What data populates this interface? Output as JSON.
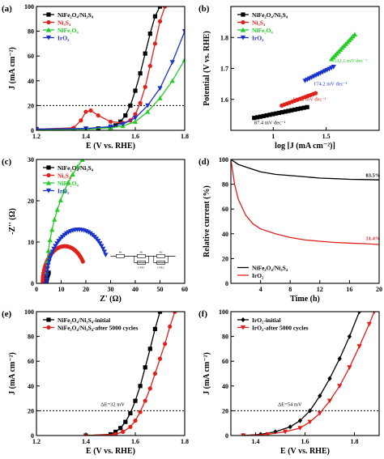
{
  "chart_data": [
    {
      "panel": "(a)",
      "type": "line",
      "xlabel": "E (V vs. RHE)",
      "ylabel": "J (mA cm⁻²)",
      "xlim": [
        1.2,
        1.8
      ],
      "ylim": [
        0,
        100
      ],
      "xticks": [
        1.2,
        1.4,
        1.6,
        1.8
      ],
      "yticks": [
        0,
        20,
        40,
        60,
        80,
        100
      ],
      "legend": "top-left",
      "reference_line": {
        "y": 20,
        "style": "dotted"
      },
      "series": [
        {
          "name": "NiFe₂O₄/Ni₃S₄",
          "color": "#000000",
          "marker": "square",
          "x": [
            1.2,
            1.35,
            1.45,
            1.5,
            1.52,
            1.54,
            1.56,
            1.58,
            1.6,
            1.62,
            1.64,
            1.66,
            1.68,
            1.7
          ],
          "y": [
            1,
            1,
            1.5,
            2.5,
            4,
            7,
            12,
            20,
            32,
            46,
            62,
            78,
            92,
            100
          ]
        },
        {
          "name": "Ni₃S₄",
          "color": "#e0201b",
          "marker": "circle",
          "x": [
            1.2,
            1.35,
            1.38,
            1.4,
            1.42,
            1.45,
            1.5,
            1.55,
            1.58,
            1.6,
            1.62,
            1.64,
            1.66,
            1.68,
            1.7,
            1.72
          ],
          "y": [
            1,
            2,
            8,
            15,
            16,
            12,
            7,
            6,
            8,
            13,
            22,
            35,
            52,
            70,
            88,
            100
          ]
        },
        {
          "name": "NiFe₂O₄",
          "color": "#22cc22",
          "marker": "triangle-up",
          "x": [
            1.2,
            1.4,
            1.5,
            1.55,
            1.6,
            1.65,
            1.7,
            1.75,
            1.8
          ],
          "y": [
            0.5,
            1,
            2,
            3.5,
            7,
            15,
            26,
            40,
            57
          ]
        },
        {
          "name": "IrO₂",
          "color": "#1a33cc",
          "marker": "triangle-down",
          "x": [
            1.2,
            1.4,
            1.5,
            1.55,
            1.6,
            1.65,
            1.7,
            1.75,
            1.8
          ],
          "y": [
            1,
            1.5,
            3,
            5,
            10,
            20,
            34,
            55,
            80
          ]
        }
      ]
    },
    {
      "panel": "(b)",
      "type": "scatter",
      "xlabel": "log [J (mA cm⁻²)]",
      "ylabel": "Potential (V vs. RHE)",
      "xlim": [
        0.6,
        2.0
      ],
      "ylim": [
        1.5,
        1.9
      ],
      "xticks": [
        1.0,
        1.5
      ],
      "yticks": [
        1.6,
        1.7,
        1.8
      ],
      "legend": "top-left",
      "series": [
        {
          "name": "NiFe₂O₄/Ni₃S₄",
          "color": "#000000",
          "marker": "square",
          "x_start": 0.82,
          "x_end": 1.32,
          "y_start": 1.54,
          "y_end": 1.575,
          "n": 18
        },
        {
          "name": "Ni₃S₄",
          "color": "#e0201b",
          "marker": "circle",
          "x_start": 1.08,
          "x_end": 1.4,
          "y_start": 1.58,
          "y_end": 1.62,
          "n": 14
        },
        {
          "name": "NiFe₂O₄",
          "color": "#22cc22",
          "marker": "triangle-up",
          "x_start": 1.55,
          "x_end": 1.77,
          "y_start": 1.73,
          "y_end": 1.81,
          "n": 14
        },
        {
          "name": "IrO₂",
          "color": "#1a33cc",
          "marker": "triangle-down",
          "x_start": 1.3,
          "x_end": 1.57,
          "y_start": 1.66,
          "y_end": 1.705,
          "n": 14
        }
      ],
      "annotations": [
        {
          "text": "87.4 mV dec⁻¹",
          "x": 0.82,
          "y": 1.52,
          "color": "#000000"
        },
        {
          "text": "126.2 mV dec⁻¹",
          "x": 1.18,
          "y": 1.595,
          "color": "#e0201b"
        },
        {
          "text": "174.2 mV dec⁻¹",
          "x": 1.38,
          "y": 1.645,
          "color": "#1a33cc"
        },
        {
          "text": "332.1 mV dec⁻¹",
          "x": 1.57,
          "y": 1.72,
          "color": "#22cc22"
        }
      ]
    },
    {
      "panel": "(c)",
      "type": "scatter",
      "xlabel": "Z' (Ω)",
      "ylabel": "-Z'' (Ω)",
      "xlim": [
        0,
        60
      ],
      "ylim": [
        0,
        30
      ],
      "xticks": [
        0,
        10,
        20,
        30,
        40,
        50,
        60
      ],
      "yticks": [
        0,
        10,
        20,
        30
      ],
      "legend": "top-left",
      "inset": "equivalent-circuit",
      "inset_labels": [
        "Rs",
        "R1",
        "R2",
        "CPE1",
        "CPE2"
      ],
      "series": [
        {
          "name": "NiFe₂O₄/Ni₃S₄",
          "color": "#000000",
          "marker": "square",
          "center": 8,
          "radius": 4,
          "a_end": 40
        },
        {
          "name": "Ni₃S₄",
          "color": "#e0201b",
          "marker": "circle",
          "center": 11.5,
          "radius": 9,
          "a_end": 145
        },
        {
          "name": "NiFe₂O₄",
          "color": "#22cc22",
          "marker": "triangle-up",
          "center": 42,
          "radius": 38,
          "a_end": 148
        },
        {
          "name": "IrO₂",
          "color": "#1a33cc",
          "marker": "triangle-down",
          "center": 17,
          "radius": 13,
          "a_end": 150
        }
      ]
    },
    {
      "panel": "(d)",
      "type": "line",
      "xlabel": "Time (h)",
      "ylabel": "Relative current (%)",
      "xlim": [
        0,
        20
      ],
      "ylim": [
        0,
        100
      ],
      "xticks": [
        4,
        8,
        12,
        16,
        20
      ],
      "yticks": [
        0,
        20,
        40,
        60,
        80,
        100
      ],
      "legend": "bottom-left",
      "series": [
        {
          "name": "NiFe₂O₄/Ni₃S₄",
          "color": "#000000",
          "x": [
            0,
            0.5,
            1,
            2,
            3,
            4,
            6,
            8,
            10,
            12,
            14,
            16,
            18,
            20
          ],
          "y": [
            100,
            98,
            96,
            94,
            92,
            90,
            88,
            87,
            86,
            85,
            84.5,
            84,
            83.8,
            83.5
          ]
        },
        {
          "name": "IrO₂",
          "color": "#e0201b",
          "x": [
            0,
            0.5,
            1,
            2,
            3,
            4,
            6,
            8,
            10,
            12,
            14,
            16,
            18,
            20
          ],
          "y": [
            100,
            80,
            68,
            55,
            48,
            44,
            40,
            37,
            35,
            34,
            33,
            32.5,
            32,
            31.4
          ]
        }
      ],
      "annotations": [
        {
          "text": "83.5%",
          "x": 18.2,
          "y": 86,
          "color": "#000000"
        },
        {
          "text": "31.4%",
          "x": 18.2,
          "y": 35,
          "color": "#e0201b"
        }
      ]
    },
    {
      "panel": "(e)",
      "type": "line",
      "xlabel": "E (V vs. RHE)",
      "ylabel": "J (mA cm⁻²)",
      "xlim": [
        1.2,
        1.8
      ],
      "ylim": [
        0,
        100
      ],
      "xticks": [
        1.2,
        1.4,
        1.6,
        1.8
      ],
      "yticks": [
        0,
        20,
        40,
        60,
        80,
        100
      ],
      "legend": "top-left",
      "reference_line": {
        "y": 20,
        "style": "dotted"
      },
      "series": [
        {
          "name": "NiFe₂O₄/Ni₃S₄-initial",
          "color": "#000000",
          "marker": "square",
          "x": [
            1.4,
            1.5,
            1.52,
            1.54,
            1.56,
            1.58,
            1.6,
            1.62,
            1.64,
            1.66,
            1.68,
            1.7
          ],
          "y": [
            0,
            1,
            3,
            6,
            11,
            18,
            28,
            40,
            55,
            70,
            86,
            100
          ]
        },
        {
          "name": "NiFe₂O₄/Ni₃S₄-after 5000 cycles",
          "color": "#e0201b",
          "marker": "circle",
          "x": [
            1.4,
            1.52,
            1.55,
            1.58,
            1.6,
            1.62,
            1.64,
            1.66,
            1.68,
            1.7,
            1.72,
            1.74,
            1.76
          ],
          "y": [
            0,
            1,
            3,
            7,
            12,
            19,
            28,
            38,
            50,
            62,
            74,
            88,
            100
          ]
        }
      ],
      "annotations": [
        {
          "text": "ΔE=32 mV",
          "x": 1.46,
          "y": 24,
          "color": "#000000"
        }
      ]
    },
    {
      "panel": "(f)",
      "type": "line",
      "xlabel": "E (V vs. RHE)",
      "ylabel": "J (mA cm⁻²)",
      "xlim": [
        1.3,
        1.9
      ],
      "ylim": [
        0,
        100
      ],
      "xticks": [
        1.4,
        1.6,
        1.8
      ],
      "yticks": [
        0,
        20,
        40,
        60,
        80,
        100
      ],
      "legend": "top-left",
      "reference_line": {
        "y": 20,
        "style": "dotted"
      },
      "series": [
        {
          "name": "IrO₂-initial",
          "color": "#000000",
          "marker": "diamond",
          "x": [
            1.35,
            1.42,
            1.48,
            1.54,
            1.58,
            1.62,
            1.66,
            1.7,
            1.74,
            1.78,
            1.82
          ],
          "y": [
            0,
            1,
            3,
            7,
            12,
            20,
            32,
            46,
            62,
            80,
            100
          ]
        },
        {
          "name": "IrO₂-after 5000 cycles",
          "color": "#e0201b",
          "marker": "triangle-down",
          "x": [
            1.35,
            1.45,
            1.52,
            1.58,
            1.62,
            1.66,
            1.7,
            1.74,
            1.78,
            1.82,
            1.86,
            1.88
          ],
          "y": [
            0,
            1,
            3,
            6,
            11,
            18,
            28,
            40,
            55,
            72,
            90,
            100
          ]
        }
      ],
      "annotations": [
        {
          "text": "ΔE=54 mV",
          "x": 1.49,
          "y": 24,
          "color": "#000000"
        }
      ]
    }
  ]
}
